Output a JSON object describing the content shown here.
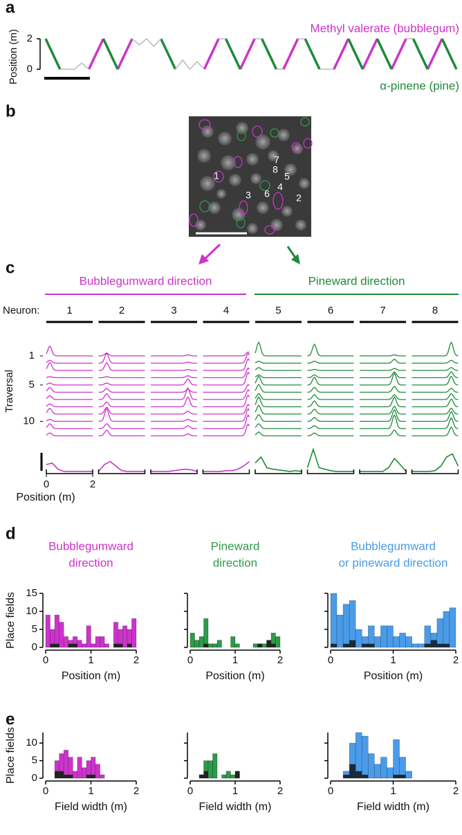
{
  "panel_labels": [
    "a",
    "b",
    "c",
    "d",
    "e"
  ],
  "image": {
    "roi_labels": [
      "1",
      "2",
      "3",
      "4",
      "5",
      "6",
      "7",
      "8"
    ]
  },
  "chart_data": [
    {
      "type": "line",
      "ylabel": "Position (m)",
      "ylim": [
        0,
        2
      ],
      "yticks": [
        0,
        2
      ],
      "xlim": [
        0,
        57
      ],
      "x": [
        0,
        1,
        2,
        3,
        4,
        5,
        6,
        7,
        8,
        9,
        10,
        11,
        12,
        13,
        14,
        15,
        16,
        17,
        18,
        19,
        20,
        21,
        22,
        23,
        24,
        25,
        26,
        27,
        28,
        29,
        30,
        31,
        32,
        33,
        34,
        35,
        36,
        37,
        38,
        39,
        40,
        41,
        42,
        43,
        44,
        45,
        46,
        47,
        48,
        49,
        50,
        51,
        52,
        53,
        54,
        55,
        56,
        57
      ],
      "series": [
        {
          "name": "Methyl valerate (bubblegum)",
          "color": "#cc33cc",
          "values": [
            null,
            null,
            null,
            null,
            null,
            null,
            0,
            1,
            2,
            null,
            0,
            1,
            2,
            null,
            null,
            null,
            null,
            null,
            null,
            null,
            null,
            null,
            0,
            1,
            2,
            null,
            null,
            0,
            1,
            2,
            null,
            null,
            null,
            0,
            1,
            2,
            null,
            null,
            null,
            null,
            0,
            1,
            2,
            null,
            0,
            1,
            2,
            null,
            0,
            1,
            2,
            null,
            null,
            0,
            1,
            2,
            null,
            null
          ]
        },
        {
          "name": "α-pinene (pine)",
          "color": "#1e8a3a",
          "values": [
            2,
            1,
            0,
            null,
            null,
            null,
            null,
            null,
            2,
            1,
            0,
            null,
            null,
            null,
            null,
            null,
            2,
            1,
            0,
            null,
            null,
            null,
            null,
            null,
            null,
            2,
            1,
            0,
            null,
            null,
            2,
            1,
            0,
            null,
            null,
            null,
            2,
            1,
            0,
            null,
            null,
            null,
            2,
            1,
            0,
            null,
            2,
            1,
            0,
            null,
            null,
            2,
            1,
            0,
            null,
            2,
            1,
            0
          ]
        },
        {
          "color": "#bbbbbb",
          "values": [
            null,
            null,
            0,
            0,
            0,
            0.4,
            0,
            null,
            null,
            null,
            null,
            null,
            2,
            1.6,
            2,
            1.5,
            2,
            null,
            0,
            0.6,
            0,
            0.5,
            0,
            null,
            2,
            2,
            null,
            null,
            null,
            2,
            2,
            null,
            0,
            0,
            null,
            2,
            2,
            null,
            0,
            0,
            0,
            null,
            null,
            null,
            null,
            null,
            null,
            null,
            null,
            null,
            2,
            2,
            null,
            null,
            null,
            null,
            null,
            null
          ]
        }
      ]
    },
    {
      "type": "traces",
      "xlim": [
        0,
        2
      ],
      "xticks": [
        0,
        2
      ],
      "xlabel": "Position (m)",
      "ylabel": "Traversal",
      "neuron_label": "Neuron:",
      "traversal_ticks": [
        1,
        5,
        10
      ],
      "groups": [
        {
          "label": "Bubblegumward direction",
          "color": "#cc33cc"
        },
        {
          "label": "Pineward direction",
          "color": "#1e8a3a"
        }
      ],
      "positions": [
        0,
        0.25,
        0.5,
        0.75,
        1,
        1.25,
        1.5,
        1.75,
        2
      ],
      "neurons": [
        {
          "label": "1",
          "color": "#cc33cc",
          "field": 0.15,
          "peaks": [
            1,
            0.3,
            0.8,
            0.1,
            0.2,
            0.5,
            0.4,
            0.3,
            0.6,
            0.2,
            0.5,
            0.3
          ],
          "mean": [
            0.5,
            0.6,
            0.2,
            0.05,
            0.05,
            0.05,
            0.05,
            0.05,
            0.05
          ]
        },
        {
          "label": "2",
          "color": "#cc33cc",
          "field": 0.35,
          "peaks": [
            0.3,
            1,
            0.8,
            0.1,
            0.2,
            0.4,
            0.6,
            0.5,
            0.7,
            1.3,
            0.5,
            0.6
          ],
          "mean": [
            0.05,
            0.5,
            0.7,
            0.4,
            0.1,
            0.05,
            0.05,
            0.05,
            0.05
          ]
        },
        {
          "label": "3",
          "color": "#cc33cc",
          "field": 1.6,
          "peaks": [
            0.1,
            0.1,
            0.1,
            0.2,
            0.6,
            0.3,
            1.2,
            1,
            0.3,
            0.2,
            0.3,
            0.2
          ],
          "mean": [
            0.05,
            0.05,
            0.05,
            0.05,
            0.1,
            0.15,
            0.2,
            0.15,
            0.05
          ]
        },
        {
          "label": "4",
          "color": "#cc33cc",
          "field": 1.95,
          "peaks": [
            0.4,
            1,
            1.2,
            1,
            1.3,
            0.8,
            1,
            1.2,
            1,
            1.3,
            1.4,
            1.2
          ],
          "mean": [
            0.05,
            0.05,
            0.05,
            0.05,
            0.1,
            0.1,
            0.2,
            0.4,
            0.7
          ]
        },
        {
          "label": "5",
          "color": "#1e8a3a",
          "field": 0.15,
          "peaks": [
            1.4,
            0.2,
            0.3,
            0.3,
            0.9,
            0.8,
            0.6,
            1,
            0.9,
            0.7,
            0.5,
            0.4
          ],
          "mean": [
            0.6,
            1,
            0.3,
            0.2,
            0.15,
            0.1,
            0.05,
            0.1,
            0.05
          ]
        },
        {
          "label": "6",
          "color": "#1e8a3a",
          "field": 0.3,
          "peaks": [
            1.2,
            0.2,
            0.1,
            0.3,
            0.8,
            0.5,
            0.5,
            0.6,
            0.5,
            0.4,
            0.3,
            0.3
          ],
          "mean": [
            0.3,
            1.5,
            0.3,
            0.2,
            0.1,
            0.05,
            0.05,
            0.05,
            0.05
          ]
        },
        {
          "label": "7",
          "color": "#1e8a3a",
          "field": 1.5,
          "peaks": [
            0.1,
            0.4,
            0.2,
            0.6,
            1.2,
            0.6,
            0.5,
            1,
            0.8,
            1.2,
            1.4,
            0.6
          ],
          "mean": [
            0.05,
            0.05,
            0.05,
            0.05,
            0.05,
            0.3,
            0.9,
            0.5,
            0.05
          ]
        },
        {
          "label": "8",
          "color": "#1e8a3a",
          "field": 1.7,
          "peaks": [
            1.4,
            0.3,
            0.3,
            0.6,
            0.9,
            0.4,
            0.6,
            0.8,
            0.6,
            1,
            1.1,
            0.9
          ],
          "mean": [
            0.05,
            0.05,
            0.05,
            0.05,
            0.1,
            0.4,
            1,
            1.2,
            0.4
          ]
        }
      ]
    },
    {
      "type": "histogram",
      "title": [
        "Bubblegumward",
        "direction"
      ],
      "ylabel": "Place fields",
      "xlabel": "Position (m)",
      "xlim": [
        0,
        2
      ],
      "xticks": [
        0,
        1,
        2
      ],
      "ylim": [
        0,
        15
      ],
      "yticks": [
        0,
        5,
        10,
        15
      ],
      "bins": [
        0,
        0.1,
        0.2,
        0.3,
        0.4,
        0.5,
        0.6,
        0.7,
        0.8,
        0.9,
        1,
        1.1,
        1.2,
        1.3,
        1.4,
        1.5,
        1.6,
        1.7,
        1.8,
        1.9,
        2
      ],
      "series": [
        {
          "color": "#cc33cc",
          "values": [
            9,
            5,
            9,
            7,
            3,
            2,
            3,
            2,
            1,
            6,
            1,
            3,
            3,
            1,
            0,
            7,
            5,
            6,
            5,
            8
          ]
        },
        {
          "color": "#222222",
          "values": [
            0,
            1,
            1,
            0,
            0,
            1,
            1,
            0,
            0,
            0,
            0,
            0,
            0,
            0,
            0,
            1,
            1,
            0,
            1,
            0
          ]
        }
      ]
    },
    {
      "type": "histogram",
      "title": [
        "Pineward",
        "direction"
      ],
      "xlabel": "Position (m)",
      "xlim": [
        0,
        2
      ],
      "xticks": [
        0,
        1,
        2
      ],
      "ylim": [
        0,
        15
      ],
      "yticks": [
        0,
        5,
        10,
        15
      ],
      "bins": [
        0,
        0.1,
        0.2,
        0.3,
        0.4,
        0.5,
        0.6,
        0.7,
        0.8,
        0.9,
        1,
        1.1,
        1.2,
        1.3,
        1.4,
        1.5,
        1.6,
        1.7,
        1.8,
        1.9,
        2
      ],
      "series": [
        {
          "color": "#2e9a4a",
          "values": [
            4,
            2,
            3,
            8,
            1,
            1,
            2,
            0,
            0,
            3,
            1,
            0,
            0,
            0,
            1,
            1,
            1,
            2,
            4,
            3
          ]
        },
        {
          "color": "#222222",
          "values": [
            0,
            0,
            0,
            1,
            0,
            0,
            0,
            0,
            0,
            0,
            0,
            0,
            0,
            0,
            0,
            1,
            0,
            2,
            1,
            0
          ]
        }
      ]
    },
    {
      "type": "histogram",
      "title": [
        "Bubblegumward",
        "or pineward direction"
      ],
      "xlabel": "Position (m)",
      "xlim": [
        0,
        2
      ],
      "xticks": [
        0,
        1,
        2
      ],
      "ylim": [
        0,
        15
      ],
      "yticks": [
        0,
        5,
        10,
        15
      ],
      "bins": [
        0,
        0.1,
        0.2,
        0.3,
        0.4,
        0.5,
        0.6,
        0.7,
        0.8,
        0.9,
        1,
        1.1,
        1.2,
        1.3,
        1.4,
        1.5,
        1.6,
        1.7,
        1.8,
        1.9,
        2
      ],
      "series": [
        {
          "color": "#4a9be8",
          "values": [
            15,
            9,
            12,
            13,
            5,
            3,
            6,
            3,
            6,
            6,
            3,
            4,
            3,
            1,
            1,
            6,
            4,
            8,
            10,
            11
          ]
        },
        {
          "color": "#1a2a3a",
          "values": [
            1,
            0,
            1,
            2,
            0,
            1,
            1,
            0,
            0,
            0,
            0,
            0,
            0,
            0,
            0,
            1,
            2,
            1,
            1,
            0
          ]
        }
      ]
    },
    {
      "type": "histogram",
      "ylabel": "Place fields",
      "xlabel": "Field width (m)",
      "xlim": [
        0,
        2
      ],
      "xticks": [
        0,
        1,
        2
      ],
      "ylim": [
        0,
        13
      ],
      "yticks": [
        0,
        5,
        10
      ],
      "bins": [
        0,
        0.1,
        0.2,
        0.3,
        0.4,
        0.5,
        0.6,
        0.7,
        0.8,
        0.9,
        1,
        1.1,
        1.2,
        1.3,
        1.4,
        1.5,
        1.6,
        1.7,
        1.8,
        1.9,
        2
      ],
      "series": [
        {
          "color": "#cc33cc",
          "values": [
            0,
            0,
            5,
            7,
            8,
            6,
            2,
            6,
            3,
            5,
            6,
            4,
            1,
            0,
            0,
            0,
            0,
            0,
            0,
            0
          ]
        },
        {
          "color": "#222222",
          "values": [
            0,
            0,
            2,
            2,
            1,
            1,
            0,
            0,
            0,
            1,
            1,
            0,
            0,
            0,
            0,
            0,
            0,
            0,
            0,
            0
          ]
        }
      ]
    },
    {
      "type": "histogram",
      "xlabel": "Field width (m)",
      "xlim": [
        0,
        2
      ],
      "xticks": [
        0,
        1,
        2
      ],
      "ylim": [
        0,
        13
      ],
      "yticks": [
        0,
        5,
        10
      ],
      "bins": [
        0,
        0.1,
        0.2,
        0.3,
        0.4,
        0.5,
        0.6,
        0.7,
        0.8,
        0.9,
        1,
        1.1,
        1.2,
        1.3,
        1.4,
        1.5,
        1.6,
        1.7,
        1.8,
        1.9,
        2
      ],
      "series": [
        {
          "color": "#2e9a4a",
          "values": [
            0,
            0,
            1,
            5,
            5,
            7,
            0,
            1,
            2,
            1,
            2,
            0,
            0,
            0,
            0,
            0,
            0,
            0,
            0,
            0
          ]
        },
        {
          "color": "#222222",
          "values": [
            0,
            0,
            1,
            2,
            0,
            0,
            0,
            0,
            0,
            0,
            2,
            0,
            0,
            0,
            0,
            0,
            0,
            0,
            0,
            0
          ]
        }
      ]
    },
    {
      "type": "histogram",
      "xlabel": "Field width (m)",
      "xlim": [
        0,
        2
      ],
      "xticks": [
        0,
        1,
        2
      ],
      "ylim": [
        0,
        13
      ],
      "yticks": [
        0,
        5,
        10
      ],
      "bins": [
        0,
        0.1,
        0.2,
        0.3,
        0.4,
        0.5,
        0.6,
        0.7,
        0.8,
        0.9,
        1,
        1.1,
        1.2,
        1.3,
        1.4,
        1.5,
        1.6,
        1.7,
        1.8,
        1.9,
        2
      ],
      "series": [
        {
          "color": "#4a9be8",
          "values": [
            0,
            0,
            2,
            10,
            13,
            12,
            7,
            4,
            6,
            3,
            11,
            6,
            2,
            0,
            0,
            0,
            0,
            0,
            0,
            0
          ]
        },
        {
          "color": "#1a2a3a",
          "values": [
            0,
            0,
            1,
            4,
            2,
            1,
            0,
            0,
            0,
            0,
            1,
            1,
            0,
            0,
            0,
            0,
            0,
            0,
            0,
            0
          ]
        }
      ]
    }
  ]
}
